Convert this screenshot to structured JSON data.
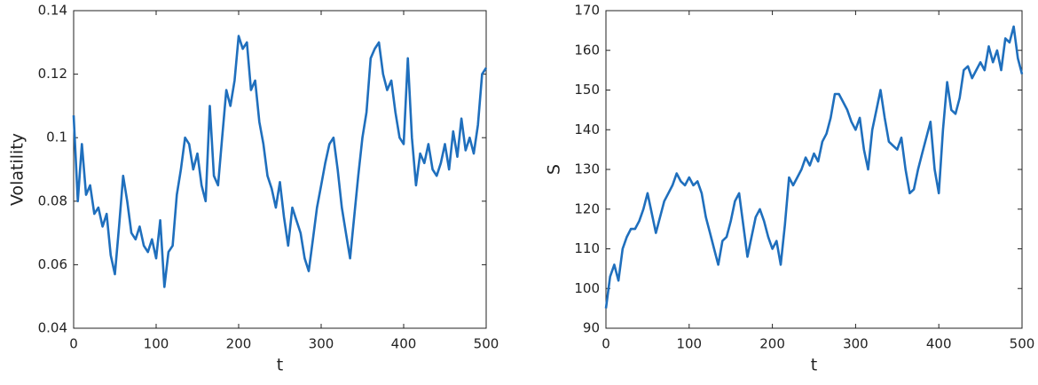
{
  "chart_data": [
    {
      "type": "line",
      "xlabel": "t",
      "ylabel": "Volatility",
      "x": [
        0,
        5,
        10,
        15,
        20,
        25,
        30,
        35,
        40,
        45,
        50,
        55,
        60,
        65,
        70,
        75,
        80,
        85,
        90,
        95,
        100,
        105,
        110,
        115,
        120,
        125,
        130,
        135,
        140,
        145,
        150,
        155,
        160,
        165,
        170,
        175,
        180,
        185,
        190,
        195,
        200,
        205,
        210,
        215,
        220,
        225,
        230,
        235,
        240,
        245,
        250,
        255,
        260,
        265,
        270,
        275,
        280,
        285,
        290,
        295,
        300,
        305,
        310,
        315,
        320,
        325,
        330,
        335,
        340,
        345,
        350,
        355,
        360,
        365,
        370,
        375,
        380,
        385,
        390,
        395,
        400,
        405,
        410,
        415,
        420,
        425,
        430,
        435,
        440,
        445,
        450,
        455,
        460,
        465,
        470,
        475,
        480,
        485,
        490,
        495,
        500
      ],
      "series": [
        {
          "color": "#1f6fbd",
          "values": [
            0.107,
            0.08,
            0.098,
            0.082,
            0.085,
            0.076,
            0.078,
            0.072,
            0.076,
            0.063,
            0.057,
            0.072,
            0.088,
            0.08,
            0.07,
            0.068,
            0.072,
            0.066,
            0.064,
            0.068,
            0.062,
            0.074,
            0.053,
            0.064,
            0.066,
            0.082,
            0.09,
            0.1,
            0.098,
            0.09,
            0.095,
            0.085,
            0.08,
            0.11,
            0.088,
            0.085,
            0.1,
            0.115,
            0.11,
            0.118,
            0.132,
            0.128,
            0.13,
            0.115,
            0.118,
            0.105,
            0.098,
            0.088,
            0.084,
            0.078,
            0.086,
            0.075,
            0.066,
            0.078,
            0.074,
            0.07,
            0.062,
            0.058,
            0.068,
            0.078,
            0.085,
            0.092,
            0.098,
            0.1,
            0.09,
            0.078,
            0.07,
            0.062,
            0.075,
            0.088,
            0.1,
            0.108,
            0.125,
            0.128,
            0.13,
            0.12,
            0.115,
            0.118,
            0.108,
            0.1,
            0.098,
            0.125,
            0.1,
            0.085,
            0.095,
            0.092,
            0.098,
            0.09,
            0.088,
            0.092,
            0.098,
            0.09,
            0.102,
            0.094,
            0.106,
            0.096,
            0.1,
            0.095,
            0.104,
            0.12,
            0.122
          ]
        }
      ],
      "xlim": [
        0,
        500
      ],
      "xticks": [
        0,
        100,
        200,
        300,
        400,
        500
      ],
      "ylim": [
        0.04,
        0.14
      ],
      "yticks": [
        0.04,
        0.06,
        0.08,
        0.1,
        0.12,
        0.14
      ]
    },
    {
      "type": "line",
      "xlabel": "t",
      "ylabel": "S",
      "x": [
        0,
        5,
        10,
        15,
        20,
        25,
        30,
        35,
        40,
        45,
        50,
        55,
        60,
        65,
        70,
        75,
        80,
        85,
        90,
        95,
        100,
        105,
        110,
        115,
        120,
        125,
        130,
        135,
        140,
        145,
        150,
        155,
        160,
        165,
        170,
        175,
        180,
        185,
        190,
        195,
        200,
        205,
        210,
        215,
        220,
        225,
        230,
        235,
        240,
        245,
        250,
        255,
        260,
        265,
        270,
        275,
        280,
        285,
        290,
        295,
        300,
        305,
        310,
        315,
        320,
        325,
        330,
        335,
        340,
        345,
        350,
        355,
        360,
        365,
        370,
        375,
        380,
        385,
        390,
        395,
        400,
        405,
        410,
        415,
        420,
        425,
        430,
        435,
        440,
        445,
        450,
        455,
        460,
        465,
        470,
        475,
        480,
        485,
        490,
        495,
        500
      ],
      "series": [
        {
          "color": "#1f6fbd",
          "values": [
            95,
            103,
            106,
            102,
            110,
            113,
            115,
            115,
            117,
            120,
            124,
            119,
            114,
            118,
            122,
            124,
            126,
            129,
            127,
            126,
            128,
            126,
            127,
            124,
            118,
            114,
            110,
            106,
            112,
            113,
            117,
            122,
            124,
            116,
            108,
            113,
            118,
            120,
            117,
            113,
            110,
            112,
            106,
            116,
            128,
            126,
            128,
            130,
            133,
            131,
            134,
            132,
            137,
            139,
            143,
            149,
            149,
            147,
            145,
            142,
            140,
            143,
            135,
            130,
            140,
            145,
            150,
            143,
            137,
            136,
            135,
            138,
            130,
            124,
            125,
            130,
            134,
            138,
            142,
            130,
            124,
            140,
            152,
            145,
            144,
            148,
            155,
            156,
            153,
            155,
            157,
            155,
            161,
            157,
            160,
            155,
            163,
            162,
            166,
            158,
            154
          ]
        }
      ],
      "xlim": [
        0,
        500
      ],
      "xticks": [
        0,
        100,
        200,
        300,
        400,
        500
      ],
      "ylim": [
        90,
        170
      ],
      "yticks": [
        90,
        100,
        110,
        120,
        130,
        140,
        150,
        160,
        170
      ]
    }
  ]
}
